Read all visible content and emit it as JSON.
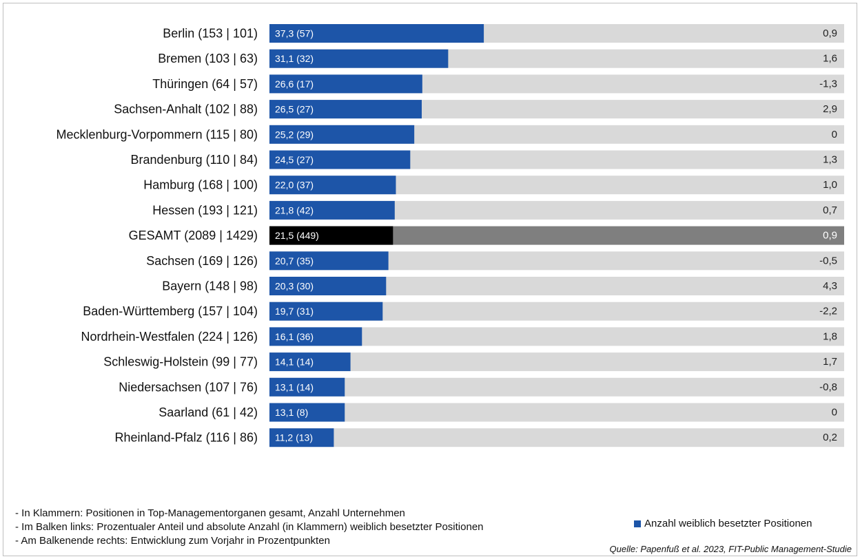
{
  "colors": {
    "bar": "#1d55a8",
    "bar_total": "#000000",
    "track": "#d9d9d9",
    "track_total": "#7f7f7f",
    "value_label": "#ffffff",
    "delta_label": "#222222",
    "delta_label_total": "#ffffff"
  },
  "chart_data": {
    "type": "bar",
    "orientation": "horizontal",
    "title": "",
    "xlabel": "",
    "ylabel": "",
    "xlim": [
      0,
      100
    ],
    "grid": false,
    "legend_position": "bottom-right",
    "categories": [
      "Berlin (153 | 101)",
      "Bremen (103 | 63)",
      "Thüringen (64 | 57)",
      "Sachsen-Anhalt (102 | 88)",
      "Mecklenburg-Vorpommern (115 | 80)",
      "Brandenburg (110 | 84)",
      "Hamburg (168 | 100)",
      "Hessen (193 | 121)",
      "GESAMT (2089 | 1429)",
      "Sachsen (169 | 126)",
      "Bayern (148 | 98)",
      "Baden-Württemberg (157 | 104)",
      "Nordrhein-Westfalen (224 | 126)",
      "Schleswig-Holstein (99 | 77)",
      "Niedersachsen (107 | 76)",
      "Saarland (61 | 42)",
      "Rheinland-Pfalz (116 | 86)"
    ],
    "highlight_index": 8,
    "series": [
      {
        "name": "Anzahl weiblich besetzter Positionen",
        "values": [
          37.3,
          31.1,
          26.6,
          26.5,
          25.2,
          24.5,
          22.0,
          21.8,
          21.5,
          20.7,
          20.3,
          19.7,
          16.1,
          14.1,
          13.1,
          13.1,
          11.2
        ],
        "labels": [
          "37,3 (57)",
          "31,1 (32)",
          "26,6 (17)",
          "26,5 (27)",
          "25,2 (29)",
          "24,5 (27)",
          "22,0 (37)",
          "21,8 (42)",
          "21,5 (449)",
          "20,7 (35)",
          "20,3 (30)",
          "19,7 (31)",
          "16,1 (36)",
          "14,1 (14)",
          "13,1 (14)",
          "13,1 (8)",
          "11,2 (13)"
        ]
      }
    ],
    "deltas": [
      "0,9",
      "1,6",
      "-1,3",
      "2,9",
      "0",
      "1,3",
      "1,0",
      "0,7",
      "0,9",
      "-0,5",
      "4,3",
      "-2,2",
      "1,8",
      "1,7",
      "-0,8",
      "0",
      "0,2"
    ]
  },
  "legend": {
    "label": "Anzahl weiblich besetzter Positionen"
  },
  "notes": [
    "- In Klammern: Positionen in Top-Managementorganen gesamt, Anzahl Unternehmen",
    "- Im Balken links: Prozentualer Anteil und absolute Anzahl (in Klammern) weiblich besetzter Positionen",
    "- Am Balkenende rechts: Entwicklung zum Vorjahr in Prozentpunkten"
  ],
  "source": "Quelle: Papenfuß et al. 2023, FIT-Public Management-Studie"
}
